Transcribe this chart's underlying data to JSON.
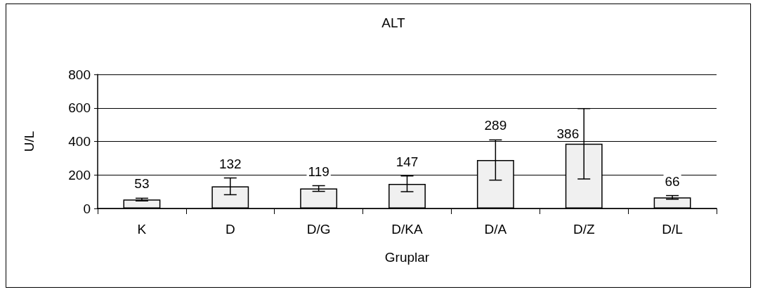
{
  "chart_data": {
    "type": "bar",
    "title": "ALT",
    "xlabel": "Gruplar",
    "ylabel": "U/L",
    "categories": [
      "K",
      "D",
      "D/G",
      "D/KA",
      "D/A",
      "D/Z",
      "D/L"
    ],
    "values": [
      53,
      132,
      119,
      147,
      289,
      386,
      66
    ],
    "errors": [
      8,
      50,
      17,
      47,
      120,
      210,
      11
    ],
    "color": "#f0f0f0",
    "ylim": [
      0,
      800
    ],
    "yticks": [
      0,
      200,
      400,
      600,
      800
    ],
    "grid": "y",
    "data_labels": true
  }
}
